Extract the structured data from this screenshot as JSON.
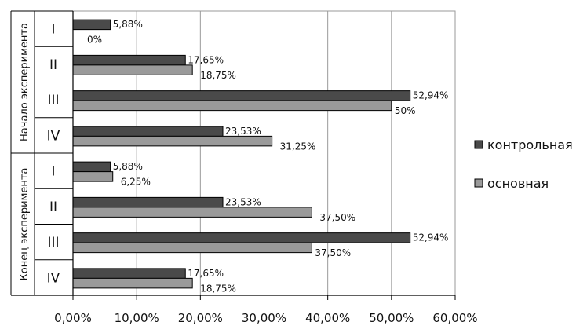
{
  "chart_data": {
    "type": "bar",
    "orientation": "horizontal",
    "xlim": [
      0,
      0.6
    ],
    "xticks": [
      "0,00%",
      "10,00%",
      "20,00%",
      "30,00%",
      "40,00%",
      "50,00%",
      "60,00%"
    ],
    "grid": "vertical",
    "legend_position": "right",
    "groups": [
      {
        "label": "Начало эксперимента",
        "categories": [
          "I",
          "II",
          "III",
          "IV"
        ]
      },
      {
        "label": "Конец эксперимента",
        "categories": [
          "I",
          "II",
          "III",
          "IV"
        ]
      }
    ],
    "series": [
      {
        "name": "контрольная",
        "color": "#4a4a4a",
        "values": [
          0.0588,
          0.1765,
          0.5294,
          0.2353,
          0.0588,
          0.2353,
          0.5294,
          0.1765
        ],
        "labels": [
          "5,88%",
          "17,65%",
          "52,94%",
          "23,53%",
          "5,88%",
          "23,53%",
          "52,94%",
          "17,65%"
        ]
      },
      {
        "name": "основная",
        "color": "#9a9a9a",
        "values": [
          0,
          0.1875,
          0.5,
          0.3125,
          0.0625,
          0.375,
          0.375,
          0.1875
        ],
        "labels": [
          "0%",
          "18,75%",
          "50%",
          "31,25%",
          "6,25%",
          "37,50%",
          "37,50%",
          "18,75%"
        ]
      }
    ]
  }
}
